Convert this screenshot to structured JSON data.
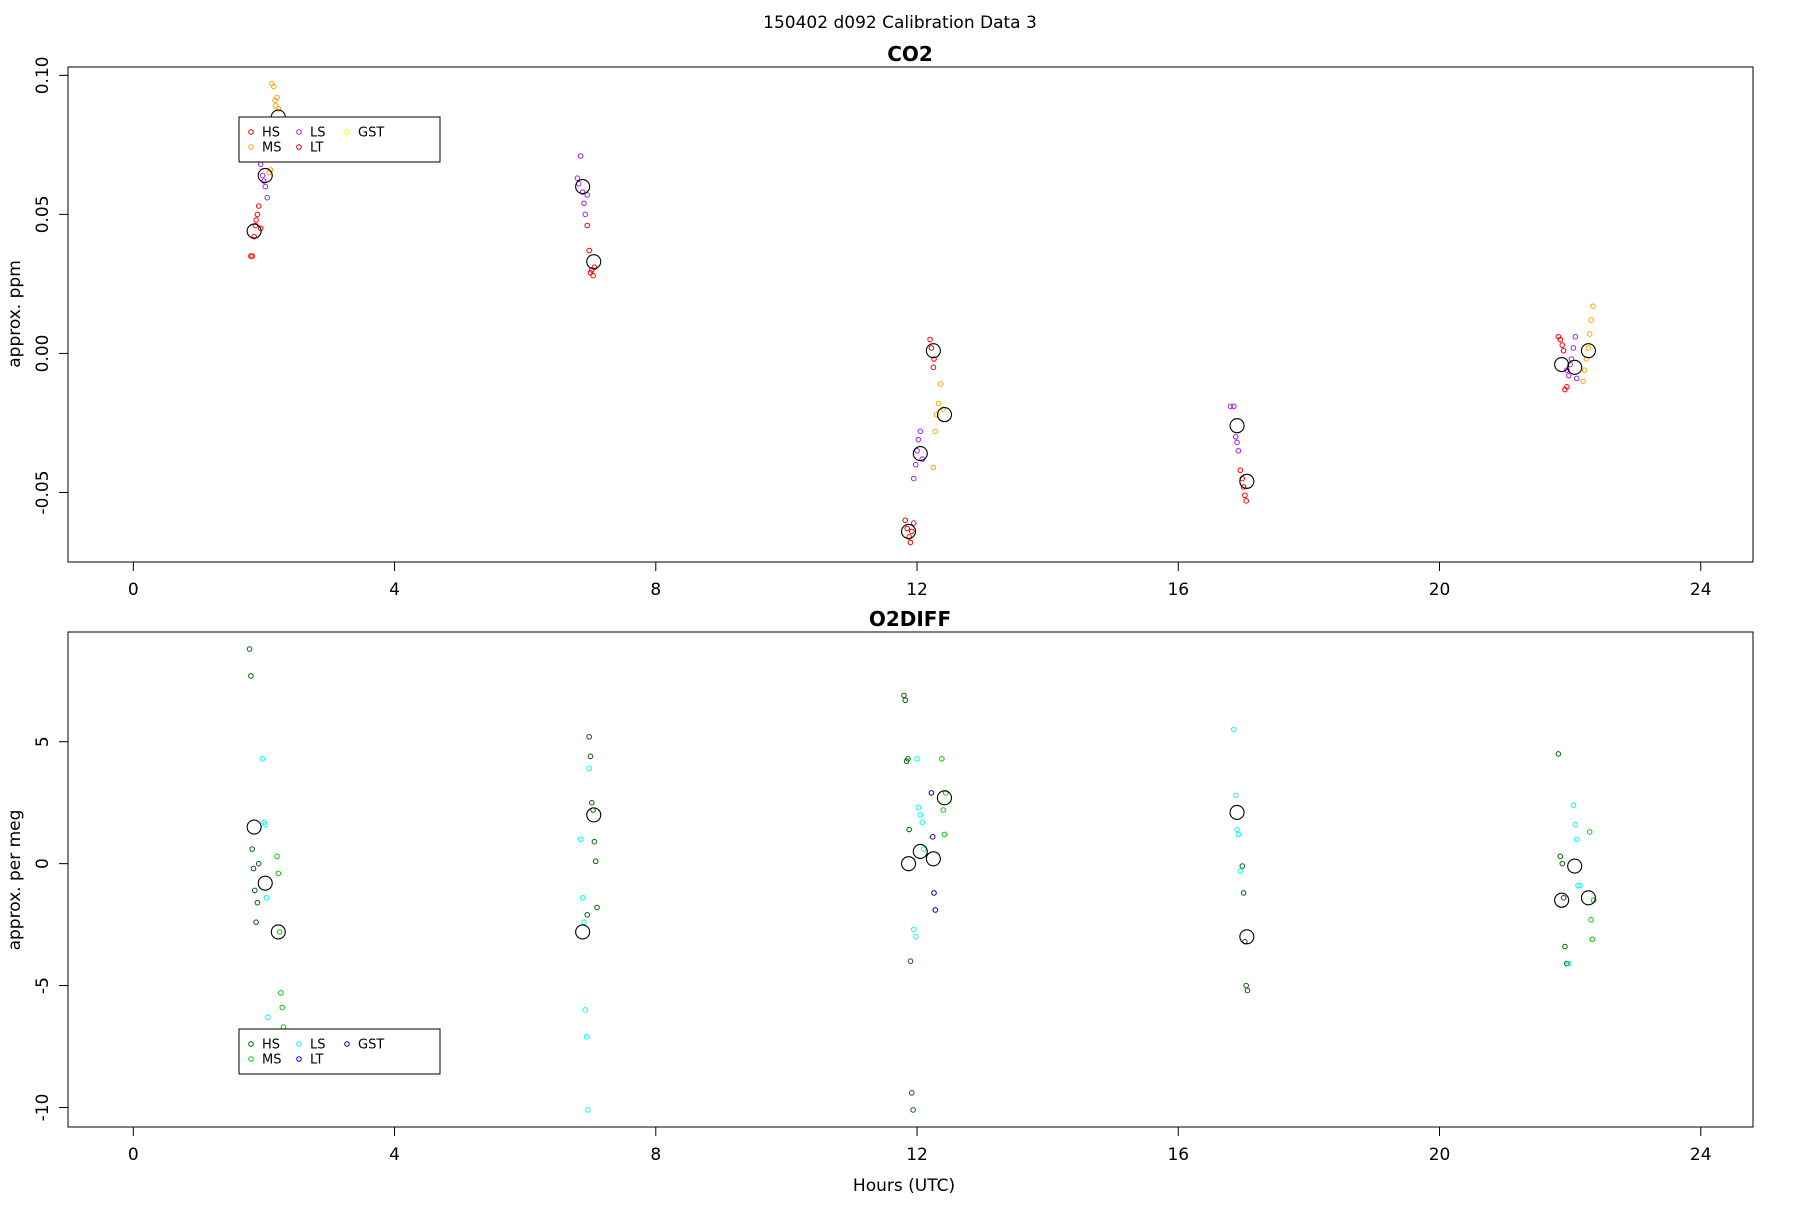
{
  "figure": {
    "suptitle": "150402   d092   Calibration Data 3",
    "xlabel": "Hours (UTC)"
  },
  "chart_data": [
    {
      "type": "scatter",
      "title": "CO2",
      "xlabel": "",
      "ylabel": "approx. ppm",
      "xlim": [
        -1,
        24.8
      ],
      "ylim": [
        -0.075,
        0.103
      ],
      "xticks": [
        0,
        4,
        8,
        12,
        16,
        20,
        24
      ],
      "yticks": [
        -0.05,
        0.0,
        0.05,
        0.1
      ],
      "ytick_labels": [
        "-0.05",
        "0.00",
        "0.05",
        "0.10"
      ],
      "grid": false,
      "legend": {
        "placement": "upper-left",
        "entries": [
          "HS",
          "MS",
          "LS",
          "LT",
          "GST"
        ]
      },
      "colors": {
        "HS": "#ff0000",
        "MS": "#ffa500",
        "LS": "#a020f0",
        "LT": "#cd0000",
        "GST": "#ffff00"
      },
      "series": [
        {
          "name": "HS",
          "x": [
            1.8,
            1.82,
            1.85,
            1.87,
            1.88,
            1.9,
            1.92,
            1.95,
            6.95,
            6.98,
            7.0,
            7.02,
            7.04,
            7.06,
            11.82,
            11.85,
            11.88,
            11.9,
            11.92,
            11.95,
            12.2,
            12.22,
            12.25,
            12.26,
            16.95,
            16.98,
            17.0,
            17.02,
            17.04,
            21.82,
            21.85,
            21.88,
            21.9,
            21.92,
            21.95
          ],
          "y": [
            0.035,
            0.035,
            0.042,
            0.046,
            0.048,
            0.05,
            0.053,
            0.045,
            0.046,
            0.037,
            0.029,
            0.03,
            0.028,
            0.031,
            -0.06,
            -0.063,
            -0.066,
            -0.068,
            -0.064,
            -0.061,
            0.005,
            0.002,
            -0.005,
            -0.002,
            -0.042,
            -0.045,
            -0.048,
            -0.051,
            -0.053,
            0.006,
            0.005,
            0.003,
            0.001,
            -0.013,
            -0.012
          ]
        },
        {
          "name": "MS",
          "x": [
            2.12,
            2.15,
            2.17,
            2.18,
            2.2,
            2.22,
            2.25,
            2.08,
            2.1,
            12.25,
            12.28,
            12.3,
            12.33,
            12.36,
            12.4,
            22.2,
            22.22,
            22.25,
            22.28,
            22.3,
            22.32,
            22.35
          ],
          "y": [
            0.097,
            0.096,
            0.091,
            0.089,
            0.092,
            0.088,
            0.08,
            0.065,
            0.066,
            -0.041,
            -0.028,
            -0.022,
            -0.018,
            -0.011,
            -0.02,
            -0.01,
            -0.006,
            -0.002,
            0.002,
            0.007,
            0.012,
            0.017
          ]
        },
        {
          "name": "LS",
          "x": [
            1.95,
            1.98,
            2.0,
            2.02,
            2.05,
            6.8,
            6.82,
            6.85,
            6.88,
            6.9,
            6.92,
            6.95,
            11.95,
            11.98,
            12.0,
            12.02,
            12.05,
            12.08,
            16.8,
            16.85,
            16.88,
            16.9,
            16.92,
            21.95,
            21.98,
            22.0,
            22.02,
            22.05,
            22.08,
            22.1
          ],
          "y": [
            0.068,
            0.064,
            0.062,
            0.06,
            0.056,
            0.063,
            0.061,
            0.071,
            0.058,
            0.054,
            0.05,
            0.057,
            -0.045,
            -0.04,
            -0.035,
            -0.031,
            -0.028,
            -0.038,
            -0.019,
            -0.019,
            -0.03,
            -0.032,
            -0.035,
            -0.006,
            -0.008,
            -0.004,
            -0.002,
            0.002,
            0.006,
            -0.009
          ]
        },
        {
          "name": "LT",
          "x": [],
          "y": []
        },
        {
          "name": "GST",
          "x": [],
          "y": []
        }
      ],
      "means": {
        "x": [
          1.85,
          2.02,
          2.22,
          6.88,
          7.05,
          11.87,
          12.05,
          12.25,
          12.42,
          16.9,
          17.05,
          21.87,
          22.07,
          22.28
        ],
        "y": [
          0.044,
          0.064,
          0.085,
          0.06,
          0.033,
          -0.064,
          -0.036,
          0.001,
          -0.022,
          -0.026,
          -0.046,
          -0.004,
          -0.005,
          0.001
        ]
      }
    },
    {
      "type": "scatter",
      "title": "O2DIFF",
      "xlabel": "Hours (UTC)",
      "ylabel": "approx. per meg",
      "xlim": [
        -1,
        24.8
      ],
      "ylim": [
        -10.8,
        9.5
      ],
      "xticks": [
        0,
        4,
        8,
        12,
        16,
        20,
        24
      ],
      "yticks": [
        -10,
        -5,
        0,
        5
      ],
      "ytick_labels": [
        "-10",
        "-5",
        "0",
        "5"
      ],
      "grid": false,
      "legend": {
        "placement": "lower-left",
        "entries": [
          "HS",
          "MS",
          "LS",
          "LT",
          "GST"
        ]
      },
      "colors": {
        "HS": "#006400",
        "MS": "#00cd00",
        "LS": "#00ffff",
        "LT": "#0000ff",
        "GST": "#00008b"
      },
      "series": [
        {
          "name": "HS",
          "x": [
            1.78,
            1.8,
            1.82,
            1.84,
            1.86,
            1.88,
            1.9,
            1.92,
            6.98,
            7.0,
            7.02,
            7.04,
            7.06,
            7.08,
            7.1,
            6.95,
            11.8,
            11.82,
            11.84,
            11.86,
            11.88,
            11.9,
            11.92,
            11.94,
            16.98,
            17.0,
            17.02,
            17.04,
            17.06,
            21.82,
            21.85,
            21.88,
            21.9,
            21.92,
            21.95
          ],
          "y": [
            8.8,
            7.7,
            0.6,
            -0.2,
            -1.1,
            -2.4,
            -1.6,
            0.0,
            5.2,
            4.4,
            2.5,
            2.2,
            0.9,
            0.1,
            -1.8,
            -2.1,
            6.9,
            6.7,
            4.2,
            4.3,
            1.4,
            -4.0,
            -9.4,
            -10.1,
            -0.1,
            -1.2,
            -3.2,
            -5.0,
            -5.2,
            4.5,
            0.3,
            0.0,
            -1.4,
            -3.4,
            -4.1
          ]
        },
        {
          "name": "MS",
          "x": [
            2.2,
            2.22,
            2.24,
            2.26,
            2.28,
            2.3,
            12.38,
            12.4,
            12.42,
            12.44,
            22.3,
            22.32,
            22.34,
            22.36
          ],
          "y": [
            0.3,
            -0.4,
            -2.8,
            -5.3,
            -5.9,
            -6.7,
            4.3,
            2.2,
            1.2,
            2.9,
            1.3,
            -2.3,
            -3.1,
            -1.5
          ]
        },
        {
          "name": "LS",
          "x": [
            1.98,
            2.0,
            2.02,
            2.04,
            2.06,
            6.85,
            6.88,
            6.9,
            6.92,
            6.94,
            6.96,
            6.98,
            12.0,
            12.02,
            12.05,
            12.08,
            12.1,
            11.95,
            11.98,
            16.85,
            16.88,
            16.9,
            16.92,
            16.95,
            22.05,
            22.08,
            22.1,
            22.12,
            22.15,
            21.98
          ],
          "y": [
            4.3,
            1.7,
            1.6,
            -1.4,
            -6.3,
            1.0,
            -1.4,
            -2.4,
            -6.0,
            -7.1,
            -10.1,
            3.9,
            4.3,
            2.3,
            2.0,
            1.7,
            0.6,
            -2.7,
            -3.0,
            5.5,
            2.8,
            1.4,
            1.2,
            -0.3,
            2.4,
            1.6,
            1.0,
            -0.9,
            -0.9,
            -4.1
          ]
        },
        {
          "name": "LT",
          "x": [],
          "y": []
        },
        {
          "name": "GST",
          "x": [
            12.22,
            12.24,
            12.26,
            12.28
          ],
          "y": [
            2.9,
            1.1,
            -1.2,
            -1.9
          ]
        }
      ],
      "means": {
        "x": [
          1.85,
          2.02,
          2.22,
          6.88,
          7.05,
          11.87,
          12.05,
          12.25,
          12.42,
          16.9,
          17.05,
          21.87,
          22.07,
          22.28
        ],
        "y": [
          1.5,
          -0.8,
          -2.8,
          -2.8,
          2.0,
          0.0,
          0.5,
          0.2,
          2.7,
          2.1,
          -3.0,
          -1.5,
          -0.1,
          -1.4
        ]
      }
    }
  ]
}
